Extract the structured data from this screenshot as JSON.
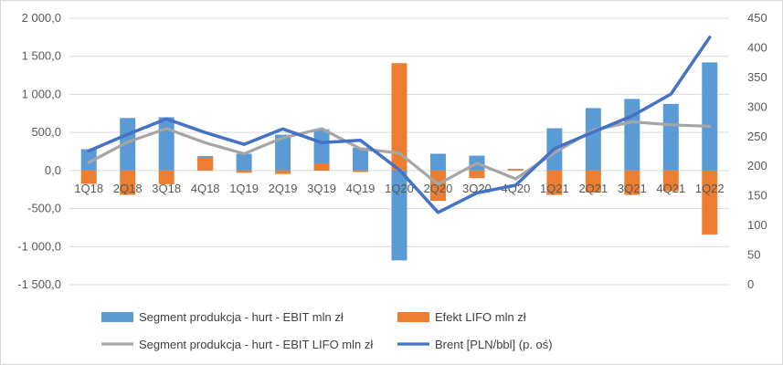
{
  "chart_data": {
    "type": "bar",
    "categories": [
      "1Q18",
      "2Q18",
      "3Q18",
      "4Q18",
      "1Q19",
      "2Q19",
      "3Q19",
      "4Q19",
      "1Q20",
      "2Q20",
      "3Q20",
      "4Q20",
      "1Q21",
      "2Q21",
      "3Q21",
      "4Q21",
      "1Q22"
    ],
    "series": [
      {
        "name": "Segment produkcja - hurt - EBIT mln zł",
        "type": "bar",
        "axis": "left",
        "color": "#5B9BD5",
        "values": [
          280,
          690,
          700,
          190,
          220,
          470,
          540,
          300,
          -1180,
          220,
          195,
          20,
          555,
          820,
          940,
          875,
          1420
        ]
      },
      {
        "name": "Efekt LIFO mln zł",
        "type": "bar",
        "axis": "left",
        "color": "#ED7D31",
        "values": [
          -175,
          -320,
          -180,
          170,
          -30,
          -45,
          90,
          -20,
          1410,
          -400,
          -100,
          20,
          -320,
          -290,
          -320,
          -270,
          -840
        ]
      },
      {
        "name": "Segment produkcja - hurt - EBIT LIFO mln zł",
        "type": "line",
        "axis": "left",
        "color": "#A5A5A5",
        "values": [
          105,
          375,
          550,
          365,
          220,
          430,
          550,
          285,
          230,
          -180,
          95,
          -110,
          235,
          530,
          640,
          600,
          580
        ]
      },
      {
        "name": "Brent  [PLN/bbl] (p. oś)",
        "type": "line",
        "axis": "right",
        "color": "#4472C4",
        "values": [
          226,
          254,
          280,
          257,
          237,
          263,
          240,
          244,
          194,
          122,
          155,
          168,
          230,
          258,
          285,
          322,
          418
        ]
      }
    ],
    "y_left": {
      "min": -1500,
      "max": 2000,
      "step": 500,
      "tick_labels": [
        "-1 500,0",
        "-1 000,0",
        "-500,0",
        "0,0",
        "500,0",
        "1 000,0",
        "1 500,0",
        "2 000,0"
      ]
    },
    "y_right": {
      "min": 0,
      "max": 450,
      "step": 50,
      "tick_labels": [
        "0",
        "50",
        "100",
        "150",
        "200",
        "250",
        "300",
        "350",
        "400",
        "450"
      ]
    },
    "title": "",
    "xlabel": "",
    "ylabel": "",
    "grid": true,
    "legend_position": "bottom"
  }
}
